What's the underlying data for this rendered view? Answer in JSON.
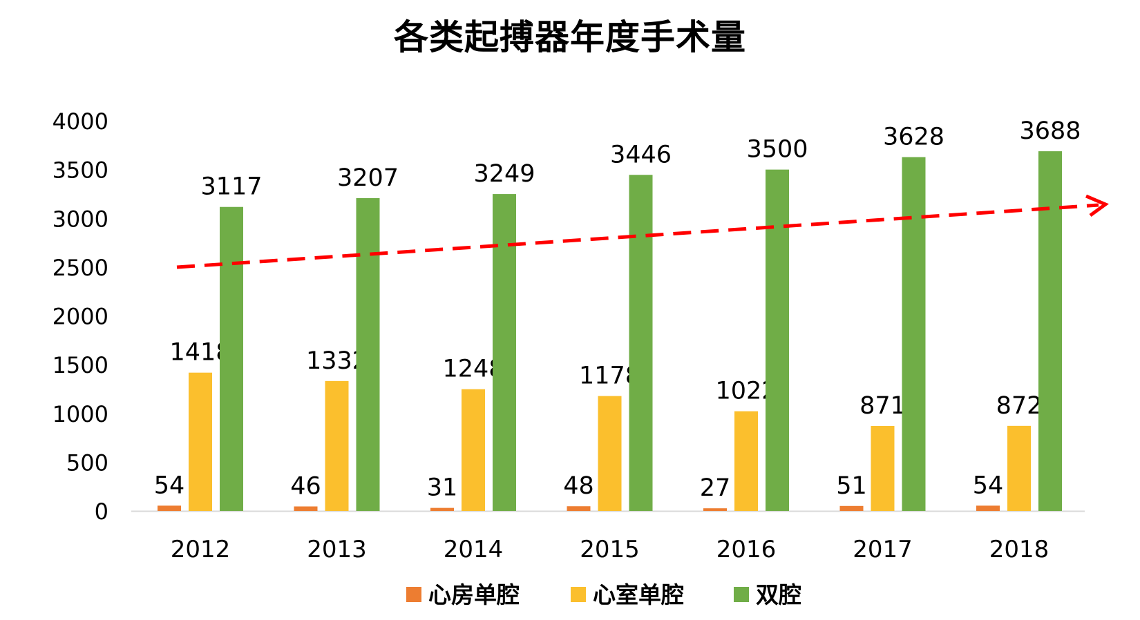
{
  "chart_data": {
    "type": "bar",
    "title": "各类起搏器年度手术量",
    "categories": [
      "2012",
      "2013",
      "2014",
      "2015",
      "2016",
      "2017",
      "2018"
    ],
    "series": [
      {
        "name": "心房单腔",
        "color": "#ED7D31",
        "values": [
          54,
          46,
          31,
          48,
          27,
          51,
          54
        ]
      },
      {
        "name": "心室单腔",
        "color": "#FBBF2D",
        "values": [
          1418,
          1332,
          1248,
          1178,
          1022,
          871,
          872
        ]
      },
      {
        "name": "双腔",
        "color": "#70AD47",
        "values": [
          3117,
          3207,
          3249,
          3446,
          3500,
          3628,
          3688
        ]
      }
    ],
    "ylim": [
      0,
      4000
    ],
    "yticks": [
      "0",
      "500",
      "1000",
      "1500",
      "2000",
      "2500",
      "3000",
      "3500",
      "4000"
    ],
    "xlabel": "",
    "ylabel": "",
    "grid": false,
    "legend": "bottom",
    "data_labels": true,
    "annotation": {
      "kind": "dashed-trend-arrow",
      "color": "#FF0000"
    }
  }
}
